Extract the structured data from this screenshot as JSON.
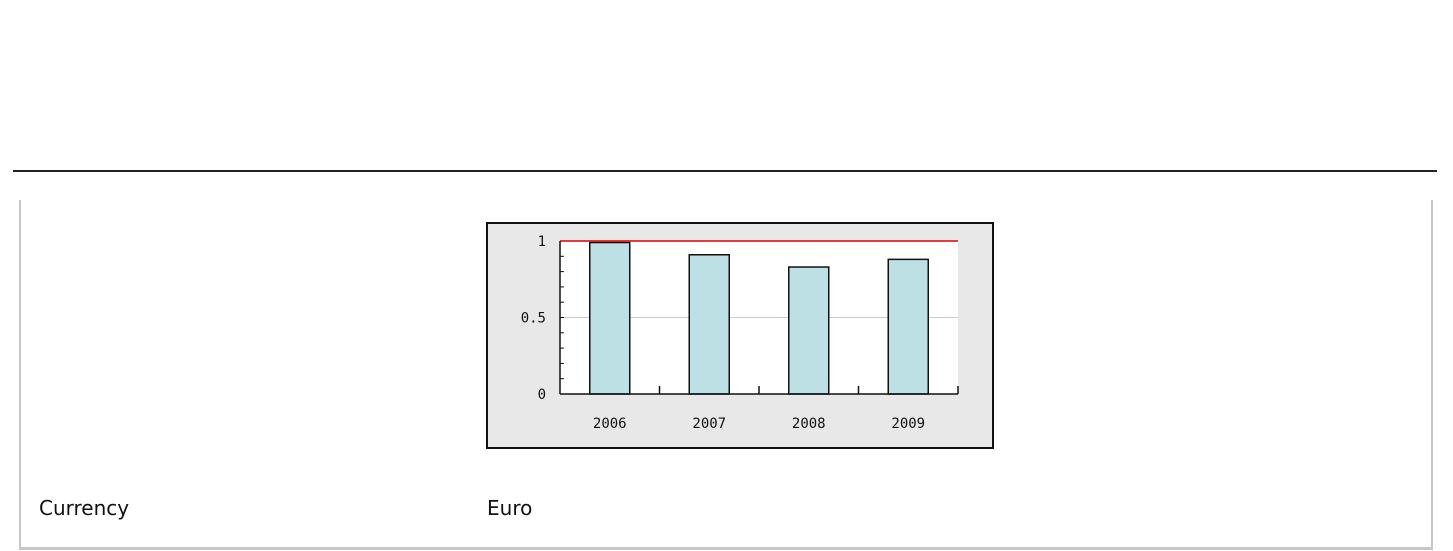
{
  "chart_data": {
    "type": "bar",
    "categories": [
      "2006",
      "2007",
      "2008",
      "2009"
    ],
    "values": [
      0.99,
      0.91,
      0.83,
      0.88
    ],
    "reference_line": {
      "value": 1,
      "color": "#e00000"
    },
    "ylim": [
      0,
      1
    ],
    "yticks": [
      "0",
      "0.5",
      "1"
    ],
    "grid": true,
    "bar_color": "#bde0e5",
    "background": "#e8e8e8"
  },
  "row": {
    "label": "Currency",
    "value": "Euro"
  }
}
